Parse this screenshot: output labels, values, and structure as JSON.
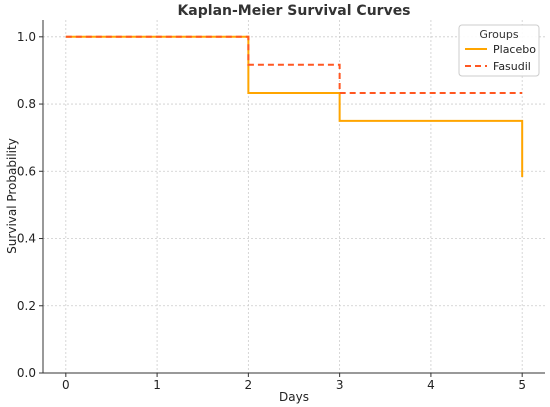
{
  "chart_data": {
    "type": "line",
    "step": "post",
    "title": "Kaplan-Meier Survival Curves",
    "xlabel": "Days",
    "ylabel": "Survival Probability",
    "xlim": [
      -0.25,
      5.25
    ],
    "ylim": [
      0,
      1.05
    ],
    "xticks": [
      0,
      1,
      2,
      3,
      4,
      5
    ],
    "xtick_labels": [
      "0",
      "1",
      "2",
      "3",
      "4",
      "5"
    ],
    "yticks": [
      0,
      0.2,
      0.4,
      0.6,
      0.8,
      1.0
    ],
    "ytick_labels": [
      "0.0",
      "0.2",
      "0.4",
      "0.6",
      "0.8",
      "1.0"
    ],
    "grid": true,
    "legend": {
      "title": "Groups",
      "position": "top-right"
    },
    "series": [
      {
        "name": "Placebo",
        "color": "#FFA500",
        "dash": "solid",
        "x": [
          0,
          2,
          3,
          5,
          5
        ],
        "y": [
          1.0,
          0.833,
          0.75,
          0.75,
          0.583
        ]
      },
      {
        "name": "Fasudil",
        "color": "#FF5722",
        "dash": "dashed",
        "x": [
          0,
          2,
          3,
          5
        ],
        "y": [
          1.0,
          0.917,
          0.833,
          0.833
        ]
      }
    ]
  }
}
